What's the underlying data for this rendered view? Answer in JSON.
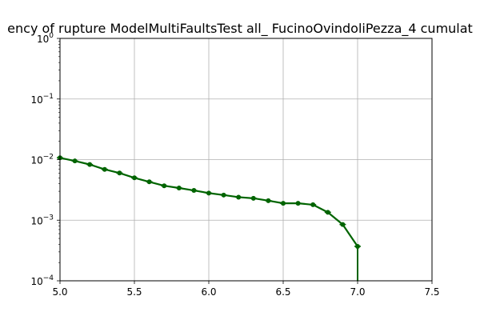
{
  "chart_data": {
    "type": "line",
    "title": "ency of rupture ModelMultiFaultsTest all_ FucinoOvindoliPezza_4 cumulat",
    "xlabel": "",
    "ylabel": "",
    "xlim": [
      5.0,
      7.5
    ],
    "ylim": [
      0.0001,
      1
    ],
    "yscale": "log",
    "grid": true,
    "x_ticks": [
      5.0,
      5.5,
      6.0,
      6.5,
      7.0,
      7.5
    ],
    "x_tick_labels": [
      "5.0",
      "5.5",
      "6.0",
      "6.5",
      "7.0",
      "7.5"
    ],
    "y_ticks": [
      0.0001,
      0.001,
      0.01,
      0.1,
      1
    ],
    "y_tick_labels": [
      {
        "base": "10",
        "exp": "−4"
      },
      {
        "base": "10",
        "exp": "−3"
      },
      {
        "base": "10",
        "exp": "−2"
      },
      {
        "base": "10",
        "exp": "−1"
      },
      {
        "base": "10",
        "exp": "0"
      }
    ],
    "series": [
      {
        "color": "#006400",
        "marker": "circle",
        "x": [
          5.0,
          5.1,
          5.2,
          5.3,
          5.4,
          5.5,
          5.6,
          5.7,
          5.8,
          5.9,
          6.0,
          6.1,
          6.2,
          6.3,
          6.4,
          6.5,
          6.6,
          6.7,
          6.8,
          6.9,
          7.0
        ],
        "y": [
          0.0107,
          0.0095,
          0.0083,
          0.0069,
          0.006,
          0.005,
          0.0043,
          0.0037,
          0.0034,
          0.0031,
          0.0028,
          0.0026,
          0.0024,
          0.0023,
          0.0021,
          0.0019,
          0.0019,
          0.0018,
          0.00135,
          0.00085,
          0.00037
        ]
      }
    ],
    "error_bar": {
      "x": 7.0,
      "y_low": 0.0001,
      "y_high": 0.00037
    }
  }
}
